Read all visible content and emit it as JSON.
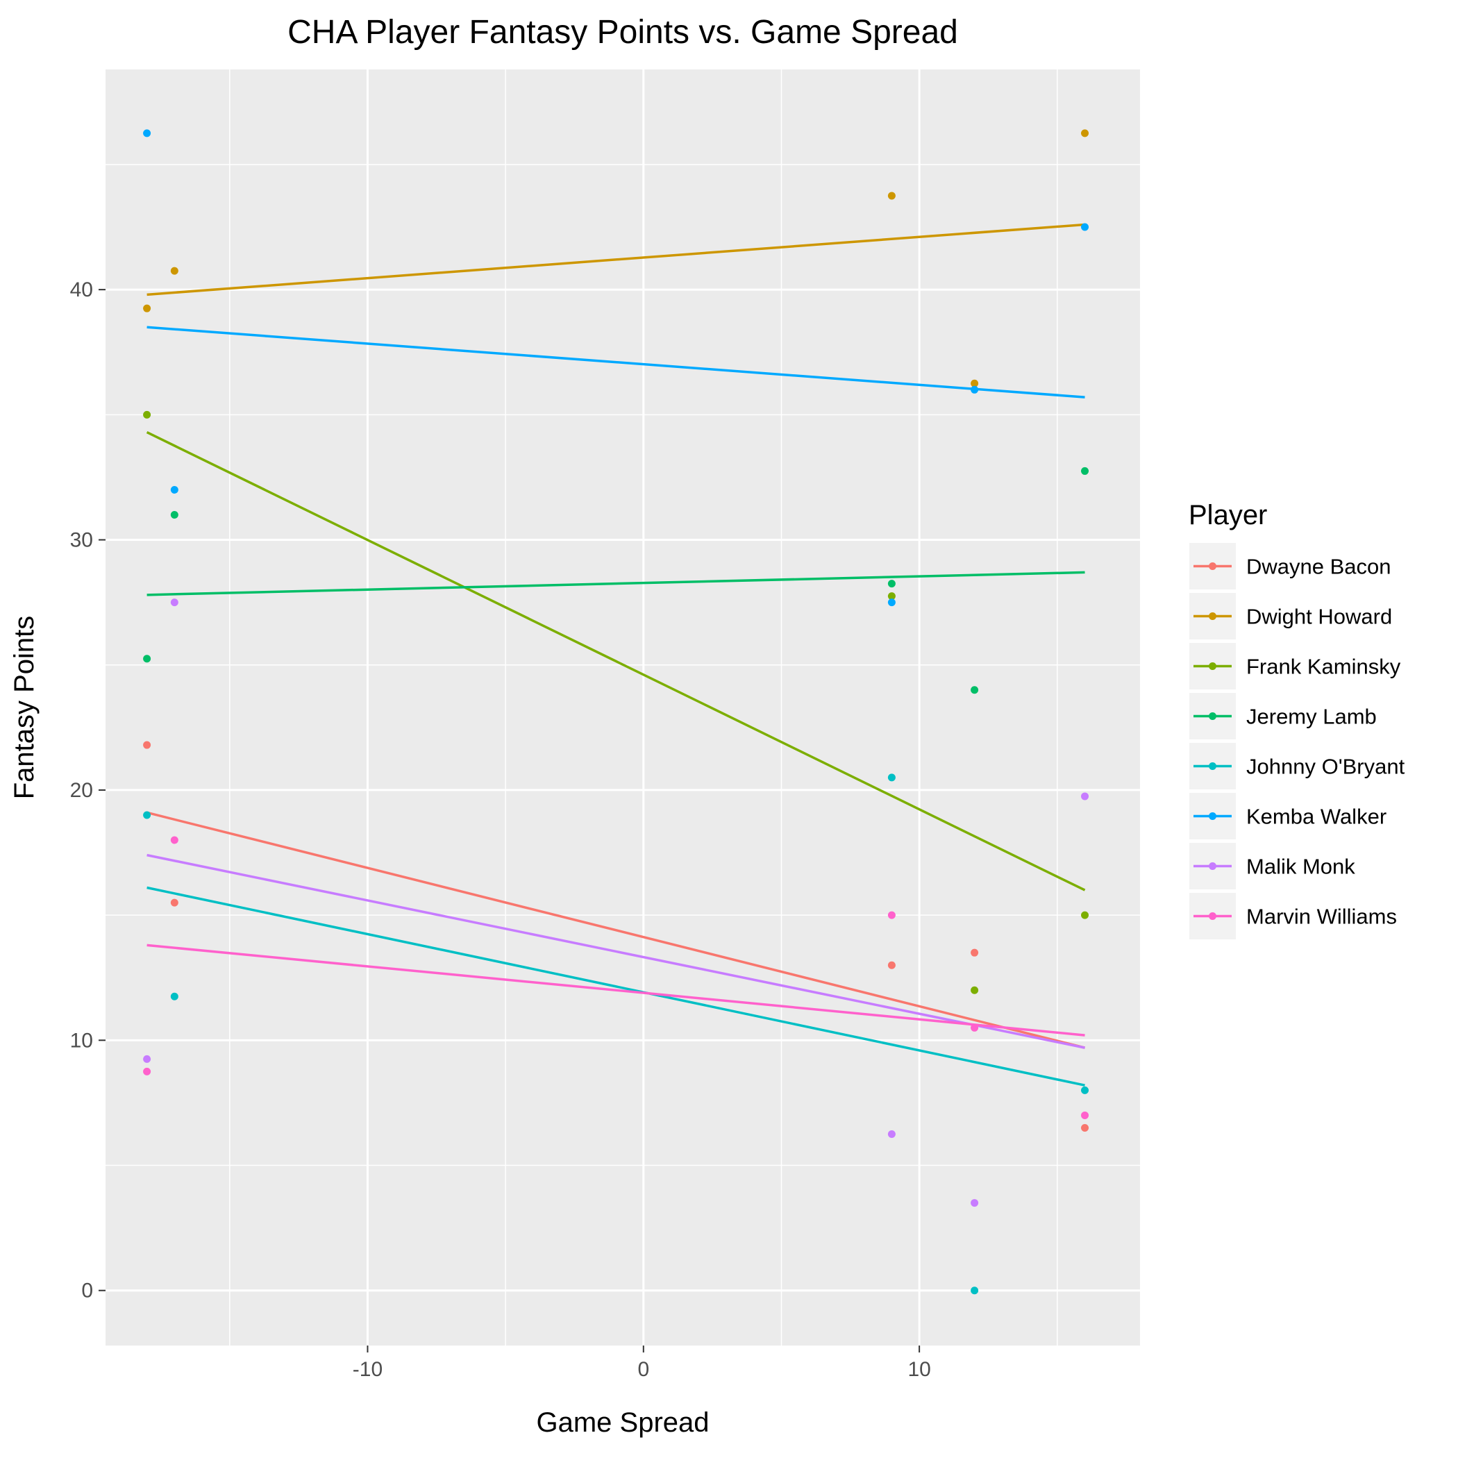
{
  "chart_data": {
    "type": "scatter",
    "title": "CHA Player Fantasy Points vs. Game Spread",
    "xlabel": "Game Spread",
    "ylabel": "Fantasy Points",
    "xlim": [
      -19.5,
      18.0
    ],
    "ylim": [
      -2.2,
      48.8
    ],
    "x_ticks": [
      -10,
      0,
      10
    ],
    "y_ticks": [
      0,
      10,
      20,
      30,
      40
    ],
    "grid": true,
    "legend": {
      "title": "Player",
      "placement": "right"
    },
    "series": [
      {
        "name": "Dwayne Bacon",
        "color": "#F8766D",
        "points": [
          [
            -18,
            21.8
          ],
          [
            -17,
            15.5
          ],
          [
            9,
            13
          ],
          [
            12,
            13.5
          ],
          [
            16,
            6.5
          ]
        ],
        "fit": [
          [
            -18,
            19.1
          ],
          [
            16,
            9.7
          ]
        ]
      },
      {
        "name": "Dwight Howard",
        "color": "#CD9600",
        "points": [
          [
            -18,
            39.25
          ],
          [
            -17,
            40.75
          ],
          [
            9,
            43.75
          ],
          [
            12,
            36.25
          ],
          [
            16,
            46.25
          ]
        ],
        "fit": [
          [
            -18,
            39.8
          ],
          [
            16,
            42.6
          ]
        ]
      },
      {
        "name": "Frank Kaminsky",
        "color": "#7CAE00",
        "points": [
          [
            -18,
            35
          ],
          [
            9,
            27.75
          ],
          [
            12,
            12
          ],
          [
            16,
            15
          ]
        ],
        "fit": [
          [
            -18,
            34.3
          ],
          [
            16,
            16
          ]
        ]
      },
      {
        "name": "Jeremy Lamb",
        "color": "#00BE67",
        "points": [
          [
            -18,
            25.25
          ],
          [
            -17,
            31
          ],
          [
            9,
            28.25
          ],
          [
            12,
            24
          ],
          [
            16,
            32.75
          ]
        ],
        "fit": [
          [
            -18,
            27.8
          ],
          [
            16,
            28.7
          ]
        ]
      },
      {
        "name": "Johnny O'Bryant",
        "color": "#00BFC4",
        "points": [
          [
            -18,
            19
          ],
          [
            -17,
            11.75
          ],
          [
            9,
            20.5
          ],
          [
            12,
            0
          ],
          [
            16,
            8
          ]
        ],
        "fit": [
          [
            -18,
            16.1
          ],
          [
            16,
            8.2
          ]
        ]
      },
      {
        "name": "Kemba Walker",
        "color": "#00A9FF",
        "points": [
          [
            -18,
            46.25
          ],
          [
            -17,
            32
          ],
          [
            9,
            27.5
          ],
          [
            12,
            36
          ],
          [
            16,
            42.5
          ]
        ],
        "fit": [
          [
            -18,
            38.5
          ],
          [
            16,
            35.7
          ]
        ]
      },
      {
        "name": "Malik Monk",
        "color": "#C77CFF",
        "points": [
          [
            -18,
            9.25
          ],
          [
            -17,
            27.5
          ],
          [
            9,
            6.25
          ],
          [
            12,
            3.5
          ],
          [
            16,
            19.75
          ]
        ],
        "fit": [
          [
            -18,
            17.4
          ],
          [
            16,
            9.7
          ]
        ]
      },
      {
        "name": "Marvin Williams",
        "color": "#FF61CC",
        "points": [
          [
            -18,
            8.75
          ],
          [
            -17,
            18
          ],
          [
            9,
            15
          ],
          [
            12,
            10.5
          ],
          [
            16,
            7
          ]
        ],
        "fit": [
          [
            -18,
            13.8
          ],
          [
            16,
            10.2
          ]
        ]
      }
    ]
  }
}
